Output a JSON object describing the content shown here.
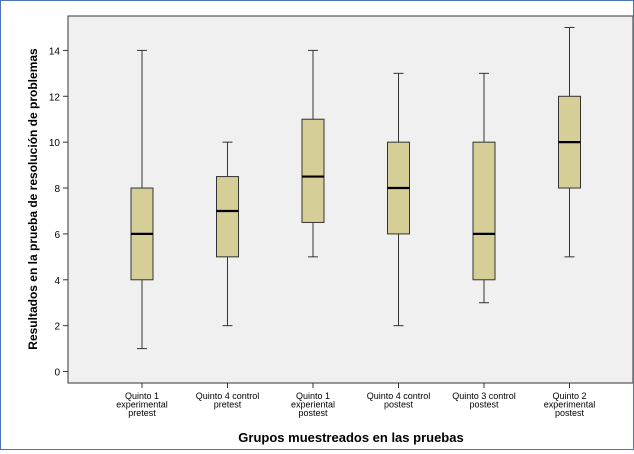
{
  "chart_data": {
    "type": "boxplot",
    "title": "",
    "xlabel": "Grupos  muestreados en las pruebas",
    "ylabel": "Resultados en la prueba de resolución de problemas",
    "ylim": [
      -0.5,
      15.5
    ],
    "yticks": [
      0,
      2,
      4,
      6,
      8,
      10,
      12,
      14
    ],
    "grid": false,
    "colors": {
      "plot_bg": "#f0f0f0",
      "box_fill": "#d5cf97",
      "box_stroke": "#333333"
    },
    "categories": [
      [
        "Quinto 1",
        "experimental",
        "pretest"
      ],
      [
        "Quinto 4 control",
        "pretest"
      ],
      [
        "Quinto 1",
        "experiental",
        "postest"
      ],
      [
        "Quinto 4 control",
        "postest"
      ],
      [
        "Quinto 3 control",
        "postest"
      ],
      [
        "Quinto 2",
        "experimental",
        "postest"
      ]
    ],
    "boxes": [
      {
        "min": 1,
        "q1": 4,
        "median": 6,
        "q3": 8,
        "max": 14
      },
      {
        "min": 2,
        "q1": 5,
        "median": 7,
        "q3": 8.5,
        "max": 10
      },
      {
        "min": 5,
        "q1": 6.5,
        "median": 8.5,
        "q3": 11,
        "max": 14
      },
      {
        "min": 2,
        "q1": 6,
        "median": 8,
        "q3": 10,
        "max": 13
      },
      {
        "min": 3,
        "q1": 4,
        "median": 6,
        "q3": 10,
        "max": 13
      },
      {
        "min": 5,
        "q1": 8,
        "median": 10,
        "q3": 12,
        "max": 15
      }
    ]
  }
}
